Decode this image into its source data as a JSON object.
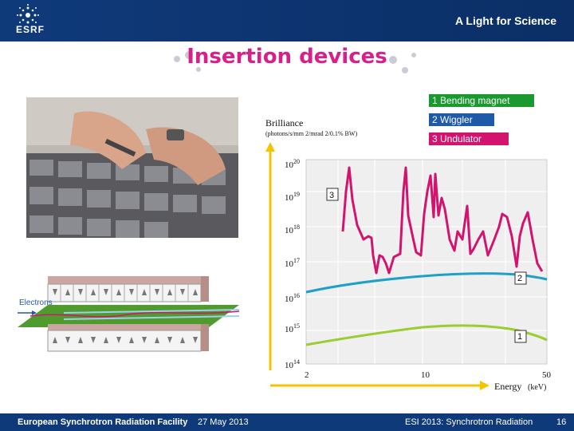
{
  "header": {
    "logo_text": "ESRF",
    "tagline": "A Light for Science"
  },
  "slide": {
    "title": "Insertion devices"
  },
  "legend": [
    {
      "label": "1 Bending magnet",
      "color": "#1a9a2e"
    },
    {
      "label": "2  Wiggler",
      "color": "#1e5aa8"
    },
    {
      "label": "3  Undulator",
      "color": "#d3146e"
    }
  ],
  "chart_data": {
    "type": "line",
    "ylabel": "Brilliance",
    "yunits": "(photons/s/mm  2/mrad 2/0.1% BW)",
    "xlabel": "Energy",
    "xunits": "(keV)",
    "yticks": [
      "1020",
      "1019",
      "1018",
      "1017",
      "1016",
      "1015",
      "1014"
    ],
    "xticks": [
      "2",
      "10",
      "50"
    ],
    "xscale": "log",
    "series": [
      {
        "name": "1",
        "color": "#9acd32"
      },
      {
        "name": "2",
        "color": "#1ea0c8"
      },
      {
        "name": "3",
        "color": "#d3146e"
      }
    ]
  },
  "diagram": {
    "electrons_label": "Electrons"
  },
  "footer": {
    "org": "European Synchrotron Radiation Facility",
    "date": "27 May 2013",
    "event": "ESI 2013: Synchrotron Radiation",
    "page": "16"
  }
}
